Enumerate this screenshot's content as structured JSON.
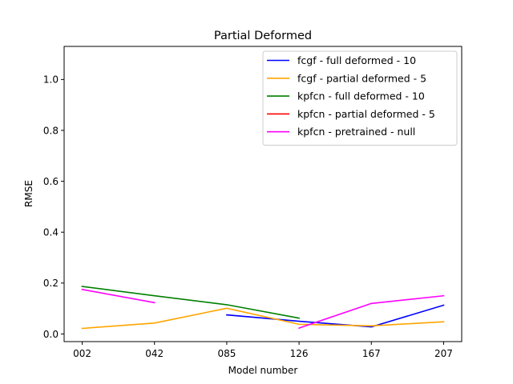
{
  "chart_data": {
    "type": "line",
    "title": "Partial Deformed",
    "xlabel": "Model number",
    "ylabel": "RMSE",
    "categories": [
      "002",
      "042",
      "085",
      "126",
      "167",
      "207"
    ],
    "ylim": [
      -0.03,
      1.13
    ],
    "yticks": [
      0.0,
      0.2,
      0.4,
      0.6,
      0.8,
      1.0
    ],
    "ytick_labels": [
      "0.0",
      "0.2",
      "0.4",
      "0.6",
      "0.8",
      "1.0"
    ],
    "legend_position": "top-right",
    "grid": false,
    "series": [
      {
        "name": "fcgf - full deformed - 10",
        "color": "#0000ff",
        "values": [
          null,
          null,
          0.075,
          0.05,
          0.028,
          0.113
        ]
      },
      {
        "name": "fcgf - partial deformed - 5",
        "color": "#ffa500",
        "values": [
          0.022,
          0.043,
          0.101,
          0.038,
          0.032,
          0.048
        ]
      },
      {
        "name": "kpfcn - full deformed - 10",
        "color": "#008000",
        "values": [
          0.187,
          0.15,
          0.115,
          0.062,
          null,
          null
        ]
      },
      {
        "name": "kpfcn - partial deformed - 5",
        "color": "#ff0000",
        "values": [
          null,
          null,
          null,
          null,
          null,
          null
        ]
      },
      {
        "name": "kpfcn - pretrained - null",
        "color": "#ff00ff",
        "values": [
          0.175,
          0.123,
          null,
          0.023,
          0.12,
          0.15
        ]
      }
    ]
  }
}
